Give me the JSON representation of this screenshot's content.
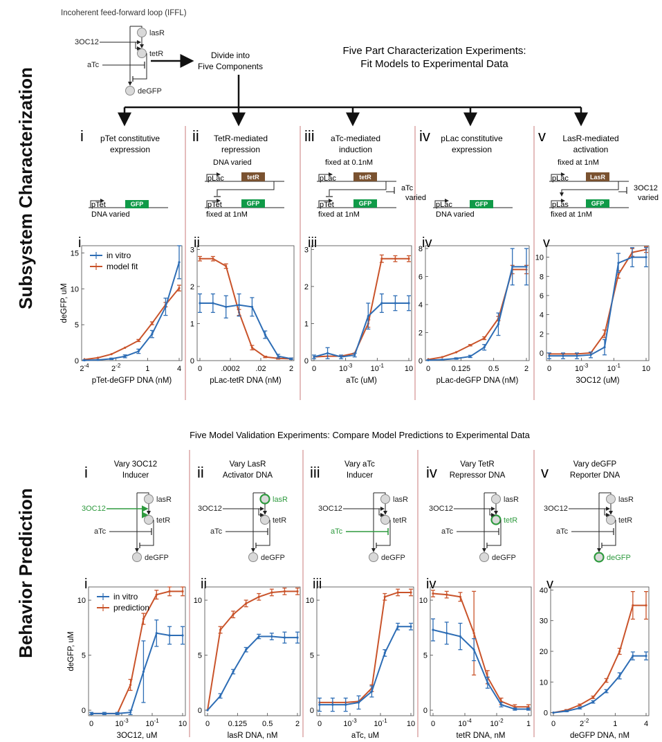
{
  "side_labels": {
    "top": "Subsystem Characterization",
    "bottom": "Behavior Prediction"
  },
  "iffl_title": "Incoherent feed-forward loop (IFFL)",
  "divide_text": [
    "Divide into",
    "Five Components"
  ],
  "characterization_title": [
    "Five Part Characterization Experiments:",
    "Fit Models to Experimental Data"
  ],
  "validation_title": "Five Model Validation Experiments: Compare Model Predictions to Experimental Data",
  "species": {
    "lasR": "lasR",
    "tetR": "tetR",
    "deGFP": "deGFP",
    "oc12": "3OC12",
    "atc": "aTc"
  },
  "colors": {
    "in_vitro": "#2d6db5",
    "model": "#c9532a",
    "highlight": "#2e9a3e",
    "gfp": "#109a48",
    "repressor": "#7a5230",
    "divider": "#c97878",
    "node": "#d9d9d9"
  },
  "top_panels": [
    {
      "num": "i",
      "title": [
        "pTet constitutive",
        "expression"
      ]
    },
    {
      "num": "ii",
      "title": [
        "TetR-mediated",
        "repression"
      ]
    },
    {
      "num": "iii",
      "title": [
        "aTc-mediated",
        "induction"
      ]
    },
    {
      "num": "iv",
      "title": [
        "pLac constitutive",
        "expression"
      ]
    },
    {
      "num": "v",
      "title": [
        "LasR-mediated",
        "activation"
      ]
    }
  ],
  "circuits": {
    "i": {
      "promoter": "pTet",
      "gene": "GFP",
      "note": "DNA varied"
    },
    "ii": {
      "top_note": "DNA varied",
      "promoter1": "pLac",
      "gene1": "tetR",
      "promoter2": "pTet",
      "gene2": "GFP",
      "note": "fixed at 1nM"
    },
    "iii": {
      "top_note": "fixed at 0.1nM",
      "promoter1": "pLac",
      "gene1": "tetR",
      "inducer": "aTc",
      "inducer_note": "varied",
      "promoter2": "pTet",
      "gene2": "GFP",
      "note": "fixed at 1nM"
    },
    "iv": {
      "promoter": "pLac",
      "gene": "GFP",
      "note": "DNA varied"
    },
    "v": {
      "top_note": "fixed at 1nM",
      "promoter1": "pLac",
      "gene1": "LasR",
      "inducer": "3OC12",
      "inducer_note": "varied",
      "promoter2": "pLas",
      "gene2": "GFP",
      "note": "fixed at 1nM"
    }
  },
  "bottom_panels": [
    {
      "num": "i",
      "title": [
        "Vary 3OC12",
        "Inducer"
      ]
    },
    {
      "num": "ii",
      "title": [
        "Vary LasR",
        "Activator DNA"
      ]
    },
    {
      "num": "iii",
      "title": [
        "Vary aTc",
        "Inducer"
      ]
    },
    {
      "num": "iv",
      "title": [
        "Vary TetR",
        "Repressor DNA"
      ]
    },
    {
      "num": "v",
      "title": [
        "Vary deGFP",
        "Reporter DNA"
      ]
    }
  ],
  "chart_data": [
    {
      "panel": "i",
      "type": "line",
      "xlabel": "pTet-deGFP DNA (nM)",
      "ylabel": "deGFP, uM",
      "ylim": [
        0,
        16
      ],
      "yticks": [
        0,
        5,
        10,
        15
      ],
      "xticks": [
        "2-4",
        "2-2",
        "1",
        "4"
      ],
      "x": [
        0,
        1,
        2,
        3,
        4,
        5,
        6,
        7
      ],
      "legend": [
        "in vitro",
        "model fit"
      ],
      "series": [
        {
          "name": "in vitro",
          "values": [
            0.05,
            0.1,
            0.25,
            0.6,
            1.3,
            3.7,
            7.5,
            13.7
          ],
          "err": [
            0.05,
            0.05,
            0.1,
            0.2,
            0.3,
            0.5,
            1.2,
            2.3
          ]
        },
        {
          "name": "model fit",
          "values": [
            0.15,
            0.4,
            0.9,
            1.8,
            2.8,
            5.2,
            7.8,
            10.1
          ],
          "err": [
            0,
            0,
            0,
            0,
            0.15,
            0.2,
            0.3,
            0.4
          ]
        }
      ]
    },
    {
      "panel": "ii",
      "type": "line",
      "xlabel": "pLac-tetR DNA (nM)",
      "ylabel": "",
      "ylim": [
        0,
        3.1
      ],
      "yticks": [
        0,
        1,
        2,
        3
      ],
      "xticks": [
        "0",
        ".0002",
        ".02",
        "2"
      ],
      "x": [
        0,
        1,
        2,
        3,
        4,
        5,
        6,
        7
      ],
      "series": [
        {
          "name": "in vitro",
          "values": [
            1.55,
            1.55,
            1.45,
            1.5,
            1.45,
            0.7,
            0.12,
            0.05
          ],
          "err": [
            0.25,
            0.25,
            0.3,
            0.3,
            0.25,
            0.1,
            0.05,
            0.02
          ]
        },
        {
          "name": "model",
          "values": [
            2.75,
            2.75,
            2.55,
            1.3,
            0.35,
            0.1,
            0.06,
            0.05
          ],
          "err": [
            0.06,
            0.06,
            0.06,
            0.08,
            0.06,
            0.02,
            0.02,
            0.02
          ]
        }
      ]
    },
    {
      "panel": "iii",
      "type": "line",
      "xlabel": "aTc (uM)",
      "ylabel": "",
      "ylim": [
        0,
        3.1
      ],
      "yticks": [
        0,
        1,
        2,
        3
      ],
      "xticks": [
        "0",
        "10-3",
        "10-1",
        "10"
      ],
      "x": [
        0,
        1,
        2,
        3,
        4,
        5,
        6,
        7
      ],
      "series": [
        {
          "name": "in vitro",
          "values": [
            0.1,
            0.2,
            0.1,
            0.15,
            1.2,
            1.55,
            1.55,
            1.55
          ],
          "err": [
            0.05,
            0.15,
            0.05,
            0.05,
            0.35,
            0.25,
            0.2,
            0.2
          ]
        },
        {
          "name": "model",
          "values": [
            0.1,
            0.12,
            0.12,
            0.2,
            1.0,
            2.75,
            2.75,
            2.75
          ],
          "err": [
            0,
            0,
            0,
            0,
            0.1,
            0.1,
            0.08,
            0.08
          ]
        }
      ]
    },
    {
      "panel": "iv",
      "type": "line",
      "xlabel": "pLac-deGFP DNA (nM)",
      "ylabel": "",
      "ylim": [
        0,
        8.2
      ],
      "yticks": [
        0,
        2,
        4,
        6,
        8
      ],
      "xticks": [
        "0",
        "0.125",
        "0.5",
        "2"
      ],
      "x": [
        0,
        1,
        2,
        3,
        4,
        5,
        6,
        7
      ],
      "series": [
        {
          "name": "in vitro",
          "values": [
            0.03,
            0.07,
            0.15,
            0.3,
            0.95,
            2.6,
            6.7,
            6.7
          ],
          "err": [
            0.02,
            0.02,
            0.05,
            0.08,
            0.2,
            0.8,
            1.3,
            1.3
          ]
        },
        {
          "name": "model",
          "values": [
            0.08,
            0.25,
            0.6,
            1.1,
            1.6,
            3.0,
            6.5,
            6.5
          ],
          "err": [
            0,
            0,
            0,
            0.05,
            0.1,
            0.15,
            0.3,
            0.3
          ]
        }
      ]
    },
    {
      "panel": "v",
      "type": "line",
      "xlabel": "3OC12 (uM)",
      "ylabel": "",
      "ylim": [
        -0.8,
        11.2
      ],
      "yticks": [
        0,
        2,
        4,
        6,
        8,
        10
      ],
      "xticks": [
        "0",
        "10-3",
        "10-1",
        "10"
      ],
      "x": [
        0,
        1,
        2,
        3,
        4,
        5,
        6,
        7
      ],
      "series": [
        {
          "name": "in vitro",
          "values": [
            -0.3,
            -0.3,
            -0.3,
            -0.2,
            0.6,
            9.4,
            10.0,
            10.0
          ],
          "err": [
            0.3,
            0.3,
            0.3,
            0.3,
            0.8,
            1.0,
            1.0,
            1.0
          ]
        },
        {
          "name": "model",
          "values": [
            -0.1,
            -0.1,
            -0.1,
            0.0,
            2.0,
            8.2,
            10.5,
            10.8
          ],
          "err": [
            0,
            0,
            0,
            0,
            0.4,
            0.4,
            0.4,
            0.3
          ]
        }
      ]
    },
    {
      "panel": "i",
      "type": "line",
      "xlabel": "3OC12, uM",
      "ylabel": "deGFP, uM",
      "ylim": [
        -0.5,
        11.2
      ],
      "yticks": [
        0,
        5,
        10
      ],
      "xticks": [
        "0",
        "10-3",
        "10-1",
        "10"
      ],
      "x": [
        0,
        1,
        2,
        3,
        4,
        5,
        6,
        7
      ],
      "legend": [
        "in vitro",
        "prediction"
      ],
      "series": [
        {
          "name": "in vitro",
          "values": [
            -0.3,
            -0.3,
            -0.3,
            -0.2,
            3.5,
            7.0,
            6.8,
            6.8
          ],
          "err": [
            0.1,
            0.1,
            0.1,
            0.2,
            2.8,
            1.2,
            0.8,
            0.8
          ]
        },
        {
          "name": "prediction",
          "values": [
            -0.3,
            -0.3,
            -0.3,
            2.3,
            8.3,
            10.5,
            10.8,
            10.8
          ],
          "err": [
            0,
            0,
            0,
            0.5,
            0.5,
            0.4,
            0.4,
            0.4
          ]
        }
      ]
    },
    {
      "panel": "ii",
      "type": "line",
      "xlabel": "lasR DNA, nM",
      "ylabel": "",
      "ylim": [
        -0.5,
        11.2
      ],
      "yticks": [
        0,
        5,
        10
      ],
      "xticks": [
        "0",
        "0.125",
        "0.5",
        "2"
      ],
      "x": [
        0,
        1,
        2,
        3,
        4,
        5,
        6,
        7
      ],
      "series": [
        {
          "name": "in vitro",
          "values": [
            0,
            1.3,
            3.5,
            5.5,
            6.7,
            6.7,
            6.6,
            6.6
          ],
          "err": [
            0,
            0.2,
            0.2,
            0.2,
            0.2,
            0.3,
            0.5,
            0.5
          ]
        },
        {
          "name": "prediction",
          "values": [
            0,
            7.3,
            8.7,
            9.7,
            10.3,
            10.7,
            10.8,
            10.8
          ],
          "err": [
            0,
            0.3,
            0.3,
            0.3,
            0.3,
            0.3,
            0.3,
            0.3
          ]
        }
      ]
    },
    {
      "panel": "iii",
      "type": "line",
      "xlabel": "aTc, uM",
      "ylabel": "",
      "ylim": [
        -0.5,
        11.2
      ],
      "yticks": [
        0,
        5,
        10
      ],
      "xticks": [
        "0",
        "10-3",
        "10-1",
        "10"
      ],
      "x": [
        0,
        1,
        2,
        3,
        4,
        5,
        6,
        7
      ],
      "series": [
        {
          "name": "in vitro",
          "values": [
            0.5,
            0.5,
            0.5,
            0.7,
            1.7,
            5.2,
            7.6,
            7.6
          ],
          "err": [
            0.6,
            0.6,
            0.6,
            0.6,
            0.5,
            0.3,
            0.3,
            0.3
          ]
        },
        {
          "name": "prediction",
          "values": [
            0.7,
            0.7,
            0.7,
            0.8,
            2.0,
            10.3,
            10.7,
            10.7
          ],
          "err": [
            0,
            0,
            0,
            0,
            0.3,
            0.3,
            0.3,
            0.3
          ]
        }
      ]
    },
    {
      "panel": "iv",
      "type": "line",
      "xlabel": "tetR DNA, nM",
      "ylabel": "",
      "ylim": [
        -0.5,
        11.2
      ],
      "yticks": [
        0,
        5,
        10
      ],
      "xticks": [
        "0",
        "10-4",
        "10-2",
        "1"
      ],
      "x": [
        0,
        1,
        2,
        3,
        4,
        5,
        6,
        7
      ],
      "series": [
        {
          "name": "in vitro",
          "values": [
            7.3,
            7.0,
            6.7,
            5.5,
            2.5,
            0.5,
            0.1,
            0.1
          ],
          "err": [
            1.0,
            1.0,
            1.2,
            1.0,
            0.5,
            0.2,
            0.1,
            0.1
          ]
        },
        {
          "name": "prediction",
          "values": [
            10.6,
            10.5,
            10.3,
            7.0,
            3.0,
            0.8,
            0.3,
            0.3
          ],
          "err": [
            0.3,
            0.3,
            0.4,
            3.8,
            0.6,
            0.3,
            0.2,
            0.2
          ]
        }
      ]
    },
    {
      "panel": "v",
      "type": "line",
      "xlabel": "deGFP DNA, nM",
      "ylabel": "",
      "ylim": [
        -1,
        41
      ],
      "yticks": [
        0,
        10,
        20,
        30,
        40
      ],
      "xticks": [
        "0",
        "2-2",
        "1",
        "4"
      ],
      "x": [
        0,
        1,
        2,
        3,
        4,
        5,
        6,
        7
      ],
      "series": [
        {
          "name": "in vitro",
          "values": [
            0,
            0.5,
            1.5,
            3.5,
            7.0,
            12.0,
            18.5,
            18.5
          ],
          "err": [
            0,
            0.2,
            0.3,
            0.4,
            0.5,
            1,
            1.3,
            1.3
          ]
        },
        {
          "name": "prediction",
          "values": [
            0,
            0.8,
            2.5,
            5.0,
            10.5,
            20.0,
            35.0,
            35.0
          ],
          "err": [
            0,
            0.2,
            0.3,
            0.4,
            0.6,
            1,
            4.5,
            4.5
          ]
        }
      ]
    }
  ]
}
